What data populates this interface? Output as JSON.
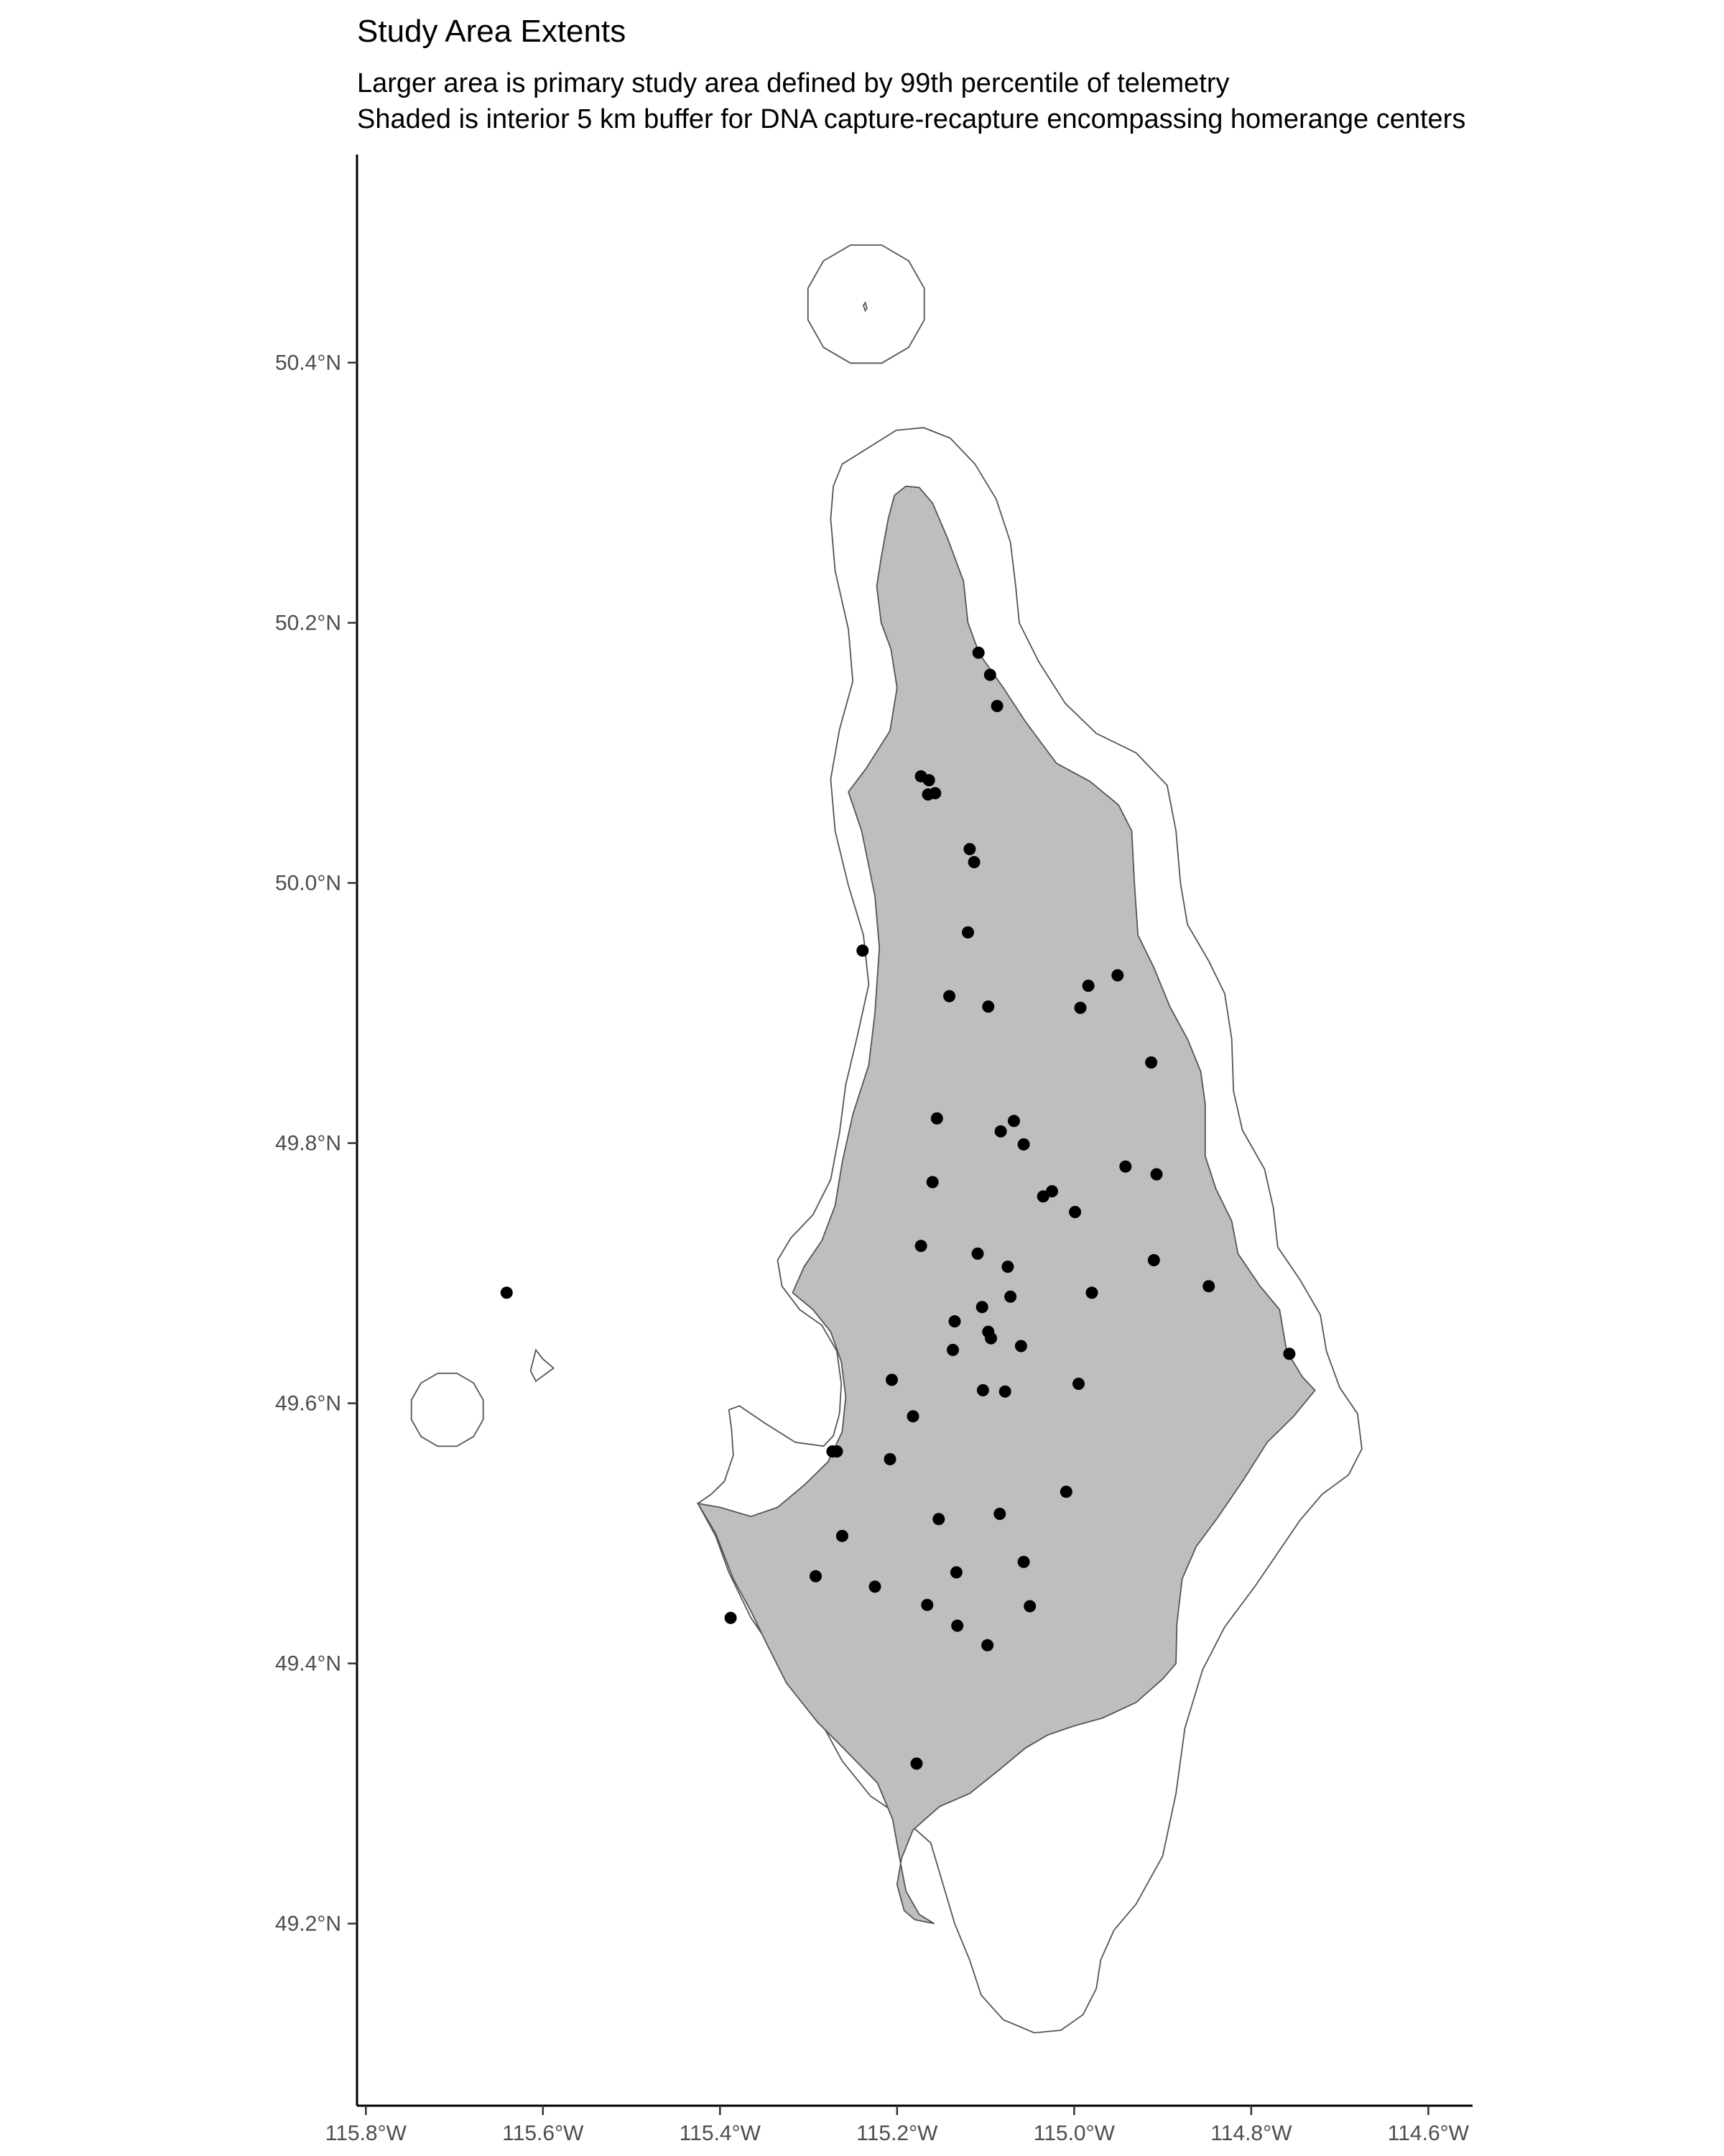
{
  "title": "Study Area Extents",
  "subtitle_line1": "Larger area is primary study area defined by 99th percentile of telemetry",
  "subtitle_line2": "Shaded is interior 5 km buffer for DNA capture-recapture encompassing homerange centers",
  "colors": {
    "buffer_fill": "#bebebe",
    "outline": "#555555",
    "point": "#000000"
  },
  "chart_data": {
    "type": "scatter",
    "title": "Study Area Extents",
    "xlabel": "",
    "ylabel": "",
    "xlim": [
      -115.81,
      -114.55
    ],
    "ylim": [
      49.06,
      50.56
    ],
    "x_ticks": [
      -115.8,
      -115.6,
      -115.4,
      -115.2,
      -115.0,
      -114.8,
      -114.6
    ],
    "x_tick_labels": [
      "115.8°W",
      "115.6°W",
      "115.4°W",
      "115.2°W",
      "115.0°W",
      "114.8°W",
      "114.6°W"
    ],
    "y_ticks": [
      49.2,
      49.4,
      49.6,
      49.8,
      50.0,
      50.2,
      50.4
    ],
    "y_tick_labels": [
      "49.2°N",
      "49.4°N",
      "49.6°N",
      "49.8°N",
      "50.0°N",
      "50.2°N",
      "50.4°N"
    ],
    "grid": false,
    "primary_study_area": [
      [
        -115.262,
        50.322
      ],
      [
        -115.229,
        50.336
      ],
      [
        -115.201,
        50.348
      ],
      [
        -115.17,
        50.35
      ],
      [
        -115.14,
        50.342
      ],
      [
        -115.112,
        50.322
      ],
      [
        -115.088,
        50.295
      ],
      [
        -115.072,
        50.262
      ],
      [
        -115.066,
        50.228
      ],
      [
        -115.062,
        50.2
      ],
      [
        -115.04,
        50.17
      ],
      [
        -115.01,
        50.138
      ],
      [
        -114.975,
        50.115
      ],
      [
        -114.93,
        50.1
      ],
      [
        -114.895,
        50.075
      ],
      [
        -114.885,
        50.04
      ],
      [
        -114.88,
        50.0
      ],
      [
        -114.872,
        49.968
      ],
      [
        -114.848,
        49.94
      ],
      [
        -114.83,
        49.915
      ],
      [
        -114.822,
        49.88
      ],
      [
        -114.82,
        49.84
      ],
      [
        -114.81,
        49.81
      ],
      [
        -114.785,
        49.78
      ],
      [
        -114.775,
        49.75
      ],
      [
        -114.77,
        49.72
      ],
      [
        -114.745,
        49.695
      ],
      [
        -114.722,
        49.668
      ],
      [
        -114.715,
        49.64
      ],
      [
        -114.7,
        49.612
      ],
      [
        -114.68,
        49.592
      ],
      [
        -114.675,
        49.565
      ],
      [
        -114.69,
        49.545
      ],
      [
        -114.72,
        49.53
      ],
      [
        -114.745,
        49.51
      ],
      [
        -114.77,
        49.485
      ],
      [
        -114.795,
        49.46
      ],
      [
        -114.83,
        49.428
      ],
      [
        -114.855,
        49.395
      ],
      [
        -114.875,
        49.35
      ],
      [
        -114.885,
        49.3
      ],
      [
        -114.9,
        49.252
      ],
      [
        -114.93,
        49.215
      ],
      [
        -114.955,
        49.195
      ],
      [
        -114.97,
        49.172
      ],
      [
        -114.975,
        49.15
      ],
      [
        -114.99,
        49.13
      ],
      [
        -115.015,
        49.118
      ],
      [
        -115.045,
        49.116
      ],
      [
        -115.08,
        49.126
      ],
      [
        -115.105,
        49.145
      ],
      [
        -115.118,
        49.172
      ],
      [
        -115.135,
        49.2
      ],
      [
        -115.148,
        49.23
      ],
      [
        -115.162,
        49.262
      ],
      [
        -115.195,
        49.282
      ],
      [
        -115.23,
        49.298
      ],
      [
        -115.262,
        49.325
      ],
      [
        -115.29,
        49.36
      ],
      [
        -115.325,
        49.395
      ],
      [
        -115.365,
        49.435
      ],
      [
        -115.39,
        49.47
      ],
      [
        -115.405,
        49.498
      ],
      [
        -115.425,
        49.523
      ],
      [
        -115.41,
        49.53
      ],
      [
        -115.395,
        49.54
      ],
      [
        -115.385,
        49.56
      ],
      [
        -115.387,
        49.58
      ],
      [
        -115.39,
        49.595
      ],
      [
        -115.378,
        49.598
      ],
      [
        -115.35,
        49.585
      ],
      [
        -115.315,
        49.57
      ],
      [
        -115.283,
        49.567
      ],
      [
        -115.272,
        49.575
      ],
      [
        -115.265,
        49.592
      ],
      [
        -115.263,
        49.615
      ],
      [
        -115.268,
        49.64
      ],
      [
        -115.285,
        49.66
      ],
      [
        -115.31,
        49.672
      ],
      [
        -115.33,
        49.69
      ],
      [
        -115.335,
        49.71
      ],
      [
        -115.32,
        49.727
      ],
      [
        -115.295,
        49.745
      ],
      [
        -115.275,
        49.772
      ],
      [
        -115.265,
        49.808
      ],
      [
        -115.258,
        49.845
      ],
      [
        -115.245,
        49.882
      ],
      [
        -115.232,
        49.922
      ],
      [
        -115.238,
        49.96
      ],
      [
        -115.255,
        49.998
      ],
      [
        -115.27,
        50.04
      ],
      [
        -115.275,
        50.08
      ],
      [
        -115.265,
        50.118
      ],
      [
        -115.25,
        50.155
      ],
      [
        -115.255,
        50.195
      ],
      [
        -115.27,
        50.24
      ],
      [
        -115.275,
        50.28
      ],
      [
        -115.272,
        50.305
      ]
    ],
    "capture_buffer_area": [
      [
        -115.203,
        50.298
      ],
      [
        -115.19,
        50.305
      ],
      [
        -115.175,
        50.304
      ],
      [
        -115.16,
        50.292
      ],
      [
        -115.143,
        50.265
      ],
      [
        -115.125,
        50.232
      ],
      [
        -115.12,
        50.2
      ],
      [
        -115.107,
        50.176
      ],
      [
        -115.08,
        50.15
      ],
      [
        -115.055,
        50.124
      ],
      [
        -115.02,
        50.092
      ],
      [
        -114.982,
        50.078
      ],
      [
        -114.95,
        50.06
      ],
      [
        -114.935,
        50.04
      ],
      [
        -114.932,
        50.0
      ],
      [
        -114.928,
        49.96
      ],
      [
        -114.91,
        49.935
      ],
      [
        -114.892,
        49.905
      ],
      [
        -114.872,
        49.88
      ],
      [
        -114.857,
        49.855
      ],
      [
        -114.852,
        49.83
      ],
      [
        -114.852,
        49.79
      ],
      [
        -114.84,
        49.765
      ],
      [
        -114.822,
        49.74
      ],
      [
        -114.815,
        49.715
      ],
      [
        -114.79,
        49.69
      ],
      [
        -114.768,
        49.672
      ],
      [
        -114.76,
        49.64
      ],
      [
        -114.742,
        49.62
      ],
      [
        -114.728,
        49.61
      ],
      [
        -114.752,
        49.59
      ],
      [
        -114.782,
        49.57
      ],
      [
        -114.808,
        49.542
      ],
      [
        -114.838,
        49.512
      ],
      [
        -114.862,
        49.49
      ],
      [
        -114.878,
        49.465
      ],
      [
        -114.884,
        49.43
      ],
      [
        -114.885,
        49.4
      ],
      [
        -114.9,
        49.388
      ],
      [
        -114.93,
        49.37
      ],
      [
        -114.968,
        49.358
      ],
      [
        -115.0,
        49.352
      ],
      [
        -115.03,
        49.345
      ],
      [
        -115.055,
        49.335
      ],
      [
        -115.085,
        49.318
      ],
      [
        -115.118,
        49.3
      ],
      [
        -115.152,
        49.29
      ],
      [
        -115.182,
        49.272
      ],
      [
        -115.195,
        49.25
      ],
      [
        -115.2,
        49.23
      ],
      [
        -115.192,
        49.21
      ],
      [
        -115.18,
        49.203
      ],
      [
        -115.158,
        49.2
      ],
      [
        -115.175,
        49.207
      ],
      [
        -115.19,
        49.225
      ],
      [
        -115.197,
        49.25
      ],
      [
        -115.205,
        49.28
      ],
      [
        -115.222,
        49.308
      ],
      [
        -115.258,
        49.333
      ],
      [
        -115.29,
        49.355
      ],
      [
        -115.325,
        49.385
      ],
      [
        -115.345,
        49.412
      ],
      [
        -115.365,
        49.44
      ],
      [
        -115.385,
        49.465
      ],
      [
        -115.405,
        49.5
      ],
      [
        -115.425,
        49.523
      ],
      [
        -115.4,
        49.52
      ],
      [
        -115.365,
        49.513
      ],
      [
        -115.335,
        49.52
      ],
      [
        -115.305,
        49.537
      ],
      [
        -115.278,
        49.555
      ],
      [
        -115.262,
        49.578
      ],
      [
        -115.258,
        49.605
      ],
      [
        -115.263,
        49.632
      ],
      [
        -115.275,
        49.655
      ],
      [
        -115.295,
        49.672
      ],
      [
        -115.318,
        49.685
      ],
      [
        -115.305,
        49.705
      ],
      [
        -115.285,
        49.725
      ],
      [
        -115.27,
        49.752
      ],
      [
        -115.262,
        49.785
      ],
      [
        -115.25,
        49.822
      ],
      [
        -115.232,
        49.86
      ],
      [
        -115.225,
        49.9
      ],
      [
        -115.22,
        49.95
      ],
      [
        -115.225,
        49.99
      ],
      [
        -115.24,
        50.04
      ],
      [
        -115.255,
        50.07
      ],
      [
        -115.235,
        50.088
      ],
      [
        -115.208,
        50.117
      ],
      [
        -115.2,
        50.15
      ],
      [
        -115.207,
        50.18
      ],
      [
        -115.218,
        50.2
      ],
      [
        -115.223,
        50.228
      ],
      [
        -115.218,
        50.25
      ],
      [
        -115.21,
        50.28
      ]
    ],
    "islands": [
      {
        "type": "circle",
        "center": [
          -115.235,
          50.445
        ],
        "radius": [
          0.068,
          0.047
        ]
      },
      {
        "type": "circle",
        "center": [
          -115.708,
          49.595
        ],
        "radius": [
          0.042,
          0.029
        ]
      },
      {
        "type": "polygon",
        "points": [
          [
            -115.608,
            49.641
          ],
          [
            -115.6,
            49.634
          ],
          [
            -115.588,
            49.627
          ],
          [
            -115.608,
            49.617
          ],
          [
            -115.614,
            49.625
          ]
        ]
      },
      {
        "type": "polygon",
        "points": [
          [
            -115.238,
            50.444
          ],
          [
            -115.236,
            50.44
          ],
          [
            -115.234,
            50.442
          ],
          [
            -115.236,
            50.446
          ]
        ]
      }
    ],
    "points_lon": [
      -115.108,
      -115.095,
      -115.087,
      -115.173,
      -115.164,
      -115.157,
      -115.165,
      -115.118,
      -115.113,
      -115.239,
      -115.12,
      -115.141,
      -115.097,
      -114.984,
      -114.951,
      -114.993,
      -114.913,
      -115.155,
      -115.068,
      -115.083,
      -115.057,
      -115.16,
      -114.942,
      -114.907,
      -115.035,
      -115.025,
      -114.999,
      -115.173,
      -115.109,
      -115.075,
      -114.91,
      -115.072,
      -114.98,
      -114.848,
      -115.135,
      -115.104,
      -115.097,
      -115.094,
      -115.137,
      -115.06,
      -115.206,
      -115.103,
      -115.078,
      -114.995,
      -114.757,
      -115.182,
      -115.273,
      -115.268,
      -115.208,
      -115.009,
      -115.084,
      -115.153,
      -115.262,
      -115.057,
      -115.133,
      -115.292,
      -115.225,
      -115.166,
      -115.05,
      -115.132,
      -115.098,
      -115.388,
      -115.178,
      -115.641
    ],
    "points_lat": [
      50.177,
      50.16,
      50.136,
      50.082,
      50.079,
      50.069,
      50.068,
      50.026,
      50.016,
      49.948,
      49.962,
      49.913,
      49.905,
      49.921,
      49.929,
      49.904,
      49.862,
      49.819,
      49.817,
      49.809,
      49.799,
      49.77,
      49.782,
      49.776,
      49.759,
      49.763,
      49.747,
      49.721,
      49.715,
      49.705,
      49.71,
      49.682,
      49.685,
      49.69,
      49.663,
      49.674,
      49.655,
      49.65,
      49.641,
      49.644,
      49.618,
      49.61,
      49.609,
      49.615,
      49.638,
      49.59,
      49.563,
      49.563,
      49.557,
      49.532,
      49.515,
      49.511,
      49.498,
      49.478,
      49.47,
      49.467,
      49.459,
      49.445,
      49.444,
      49.429,
      49.414,
      49.435,
      49.323,
      49.685
    ]
  }
}
